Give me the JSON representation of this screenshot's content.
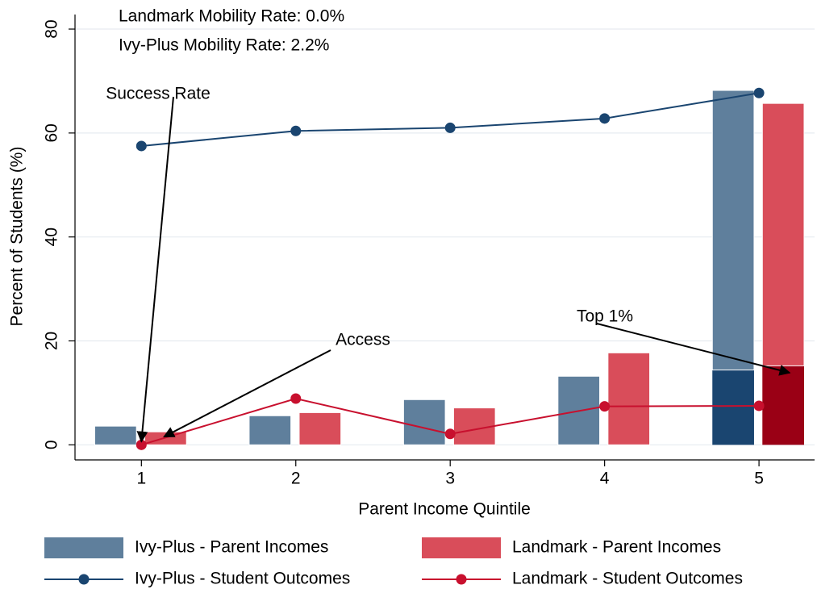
{
  "chart_data": {
    "type": "bar",
    "title_lines": [
      "Landmark Mobility Rate:  0.0%",
      "Ivy-Plus Mobility Rate:   2.2%"
    ],
    "x_label": "Parent Income Quintile",
    "y_label": "Percent of Students (%)",
    "x": [
      1,
      2,
      3,
      4,
      5
    ],
    "xlim": [
      0.57,
      5.36
    ],
    "xticks": [
      1,
      2,
      3,
      4,
      5
    ],
    "ylim": [
      -2.9,
      82.8
    ],
    "yticks": [
      0,
      20,
      40,
      60,
      80
    ],
    "grid": true,
    "series": [
      {
        "name": "Ivy-Plus - Parent Incomes",
        "kind": "bar",
        "color": "#5f7f9c",
        "top_color": "#1a4570",
        "values": [
          3.6,
          5.6,
          8.7,
          13.2,
          53.8
        ],
        "top_values": [
          null,
          null,
          null,
          null,
          14.4
        ]
      },
      {
        "name": "Landmark - Parent Incomes",
        "kind": "bar",
        "color": "#d94d5a",
        "top_color": "#9a0015",
        "values": [
          2.5,
          6.2,
          7.1,
          17.7,
          50.5
        ],
        "top_values": [
          null,
          null,
          null,
          null,
          15.2
        ]
      },
      {
        "name": "Ivy-Plus - Student Outcomes",
        "kind": "line",
        "color": "#1a4570",
        "values": [
          57.5,
          60.4,
          61.0,
          62.8,
          67.7
        ]
      },
      {
        "name": "Landmark - Student Outcomes",
        "kind": "line",
        "color": "#c8102e",
        "values": [
          0,
          8.9,
          2.1,
          7.4,
          7.5
        ]
      }
    ],
    "annotations": [
      "Success Rate",
      "Access",
      "Top 1%"
    ]
  }
}
